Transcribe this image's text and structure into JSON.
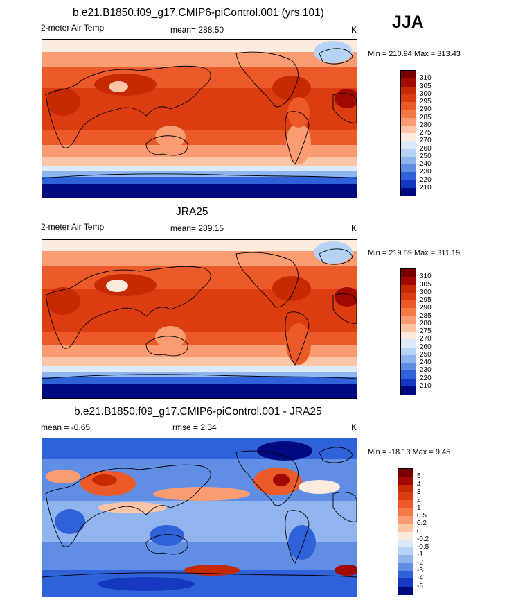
{
  "season": "JJA",
  "panels": [
    {
      "id": "model",
      "title": "b.e21.B1850.f09_g17.CMIP6-piControl.001 (yrs 101)",
      "left_label": "2-meter Air Temp",
      "center_label": "mean= 288.50",
      "units": "K",
      "minmax": "Min = 210.94 Max = 313.43",
      "colorbar_labels": [
        "310",
        "305",
        "300",
        "295",
        "290",
        "285",
        "280",
        "275",
        "270",
        "260",
        "250",
        "240",
        "230",
        "220",
        "210"
      ]
    },
    {
      "id": "obs",
      "title": "JRA25",
      "left_label": "2-meter Air Temp",
      "center_label": "mean= 289.15",
      "units": "K",
      "minmax": "Min = 219.59 Max = 311.19",
      "colorbar_labels": [
        "310",
        "305",
        "300",
        "295",
        "290",
        "285",
        "280",
        "275",
        "270",
        "260",
        "250",
        "240",
        "230",
        "220",
        "210"
      ]
    },
    {
      "id": "diff",
      "title": "b.e21.B1850.f09_g17.CMIP6-piControl.001 - JRA25",
      "left_label": "mean =  -0.65",
      "center_label": "rmse =   2.34",
      "units": "K",
      "minmax": "Min = -18.13 Max =   9.45",
      "colorbar_labels": [
        "5",
        "4",
        "3",
        "2",
        "1",
        "0.5",
        "0.2",
        "0",
        "-0.2",
        "-0.5",
        "-1",
        "-2",
        "-3",
        "-4",
        "-5"
      ]
    }
  ],
  "colors": {
    "temp_scale": [
      "#7a0000",
      "#a00a00",
      "#c52a00",
      "#db3d10",
      "#eb5a28",
      "#f47a45",
      "#f99c72",
      "#fcc5a6",
      "#fdebe0",
      "#dce9fa",
      "#b6d2f5",
      "#8fb4ee",
      "#5f8ee4",
      "#2f61d8",
      "#1438c0",
      "#000a80"
    ],
    "diff_scale": [
      "#7a0000",
      "#a00a00",
      "#c52a00",
      "#db3d10",
      "#eb5a28",
      "#f47a45",
      "#f99c72",
      "#fcc5a6",
      "#fdebe0",
      "#dce9fa",
      "#b6d2f5",
      "#8fb4ee",
      "#5f8ee4",
      "#2f61d8",
      "#1438c0",
      "#000a80"
    ]
  },
  "chart_data": [
    {
      "type": "heatmap",
      "title": "b.e21.B1850.f09_g17.CMIP6-piControl.001 (yrs 101)",
      "variable": "2-meter Air Temp",
      "units": "K",
      "mean": 288.5,
      "min": 210.94,
      "max": 313.43,
      "contour_levels": [
        210,
        220,
        230,
        240,
        250,
        260,
        270,
        275,
        280,
        285,
        290,
        295,
        300,
        305,
        310
      ]
    },
    {
      "type": "heatmap",
      "title": "JRA25",
      "variable": "2-meter Air Temp",
      "units": "K",
      "mean": 289.15,
      "min": 219.59,
      "max": 311.19,
      "contour_levels": [
        210,
        220,
        230,
        240,
        250,
        260,
        270,
        275,
        280,
        285,
        290,
        295,
        300,
        305,
        310
      ]
    },
    {
      "type": "heatmap",
      "title": "b.e21.B1850.f09_g17.CMIP6-piControl.001 - JRA25",
      "units": "K",
      "mean": -0.65,
      "rmse": 2.34,
      "min": -18.13,
      "max": 9.45,
      "contour_levels": [
        -5,
        -4,
        -3,
        -2,
        -1,
        -0.5,
        -0.2,
        0,
        0.2,
        0.5,
        1,
        2,
        3,
        4,
        5
      ]
    }
  ]
}
